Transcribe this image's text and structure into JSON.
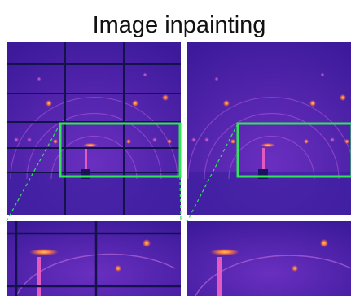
{
  "header": {
    "title": "Image inpainting"
  }
}
